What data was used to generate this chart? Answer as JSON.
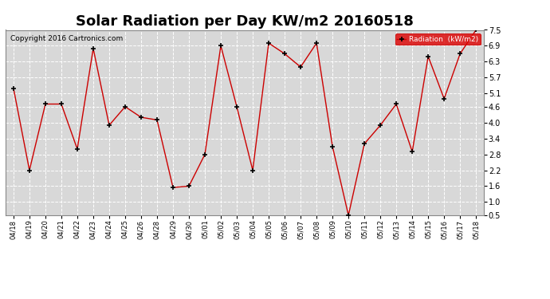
{
  "title": "Solar Radiation per Day KW/m2 20160518",
  "copyright_text": "Copyright 2016 Cartronics.com",
  "legend_label": "Radiation  (kW/m2)",
  "background_color": "#ffffff",
  "plot_bg_color": "#d8d8d8",
  "grid_color": "#ffffff",
  "line_color": "#cc0000",
  "marker_color": "#000000",
  "title_fontsize": 13,
  "dates": [
    "04/18",
    "04/19",
    "04/20",
    "04/21",
    "04/22",
    "04/23",
    "04/24",
    "04/25",
    "04/26",
    "04/28",
    "04/29",
    "04/30",
    "05/01",
    "05/02",
    "05/03",
    "05/04",
    "05/05",
    "05/06",
    "05/07",
    "05/08",
    "05/09",
    "05/10",
    "05/11",
    "05/12",
    "05/13",
    "05/14",
    "05/15",
    "05/16",
    "05/17",
    "05/18"
  ],
  "values": [
    5.3,
    2.2,
    4.7,
    4.7,
    3.0,
    6.8,
    3.9,
    4.6,
    4.2,
    4.1,
    1.55,
    1.6,
    2.8,
    6.9,
    4.6,
    2.2,
    7.0,
    6.6,
    6.1,
    7.0,
    3.1,
    0.5,
    3.2,
    3.9,
    4.7,
    2.9,
    6.5,
    4.9,
    6.6,
    7.5
  ],
  "ylim_min": 0.5,
  "ylim_max": 7.5,
  "yticks": [
    0.5,
    1.0,
    1.6,
    2.2,
    2.8,
    3.4,
    4.0,
    4.6,
    5.1,
    5.7,
    6.3,
    6.9,
    7.5
  ]
}
